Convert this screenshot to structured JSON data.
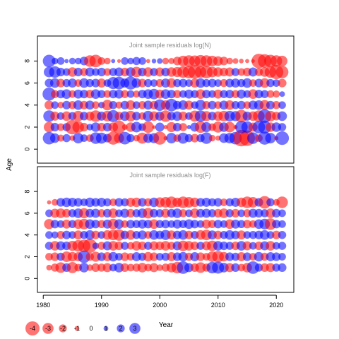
{
  "chart_data": {
    "type": "scatter",
    "subtype": "bubble-residuals",
    "ylabel": "Age",
    "xlabel": "Year",
    "x_range": [
      1981,
      2021
    ],
    "xlim": [
      1979,
      2023
    ],
    "x_ticks": [
      1980,
      1990,
      2000,
      2010,
      2020
    ],
    "ylim": [
      -0.5,
      9.5
    ],
    "y_ticks": [
      0,
      2,
      4,
      6,
      8
    ],
    "colors": {
      "negative": "#ff0000",
      "positive": "#0000ff",
      "opacity": 0.55
    },
    "panels": [
      {
        "title": "Joint sample residuals log(N)",
        "ages": [
          1,
          2,
          3,
          4,
          5,
          6,
          7,
          8
        ],
        "residuals": [
          [
            2.2,
            1.6,
            -1.1,
            1.3,
            -0.8,
            1.8,
            1.2,
            -1.2,
            2.0,
            1.9,
            1.4,
            -2.3,
            -1.7,
            2.2,
            1.3,
            -1.0,
            -1.9,
            1.6,
            1.7,
            -2.3,
            -0.5,
            1.8,
            -1.2,
            1.9,
            1.3,
            -1.4,
            1.3,
            2.0,
            -1.0,
            -0.7,
            1.6,
            1.8,
            2.2,
            -3.0,
            -2.8,
            2.0,
            -1.2,
            2.3,
            1.8,
            -0.5,
            2.4
          ],
          [
            -1.8,
            1.4,
            -1.2,
            1.3,
            -2.6,
            -2.0,
            -1.4,
            1.0,
            1.6,
            -1.4,
            1.4,
            -1.6,
            -2.3,
            -0.8,
            -1.6,
            1.8,
            1.2,
            -2.0,
            -0.4,
            1.5,
            -0.5,
            -1.7,
            1.4,
            -1.3,
            0.5,
            1.5,
            -2.0,
            1.7,
            -1.2,
            -1.9,
            1.6,
            -1.8,
            -0.5,
            2.2,
            2.0,
            -1.5,
            2.2,
            2.3,
            -1.6,
            1.6,
            1.3
          ],
          [
            2.0,
            -1.5,
            1.2,
            -1.6,
            1.3,
            -1.8,
            1.4,
            -1.5,
            -2.0,
            1.5,
            -1.8,
            2.1,
            -1.4,
            1.6,
            -1.8,
            1.4,
            -1.2,
            1.8,
            -1.6,
            1.5,
            -2.0,
            1.4,
            1.6,
            -1.5,
            1.2,
            -1.9,
            2.0,
            -1.7,
            1.4,
            -1.6,
            -1.8,
            1.8,
            1.7,
            -2.2,
            1.5,
            -1.6,
            -2.0,
            2.4,
            -1.8,
            -1.4,
            1.6
          ],
          [
            -1.5,
            1.2,
            -1.0,
            1.4,
            -1.3,
            1.6,
            -1.4,
            1.5,
            -1.2,
            1.0,
            -1.8,
            1.3,
            -1.1,
            1.4,
            -1.6,
            1.2,
            -1.3,
            1.5,
            -1.4,
            2.0,
            -1.6,
            2.2,
            1.4,
            1.6,
            -1.5,
            1.2,
            1.8,
            -1.3,
            1.4,
            -1.2,
            1.5,
            -1.6,
            1.3,
            1.4,
            -1.2,
            1.5,
            1.6,
            -1.7,
            1.4,
            -1.3,
            1.2
          ],
          [
            2.3,
            -1.3,
            1.4,
            1.6,
            -1.2,
            1.5,
            1.4,
            -1.4,
            1.6,
            1.3,
            -1.2,
            1.4,
            1.5,
            -1.3,
            1.2,
            -1.1,
            1.4,
            1.6,
            1.8,
            -1.5,
            1.6,
            1.4,
            -1.3,
            1.2,
            1.5,
            1.3,
            -1.6,
            1.4,
            1.2,
            -1.5,
            1.3,
            1.4,
            -1.3,
            1.5,
            1.2,
            -1.6,
            1.4,
            1.3,
            -1.2,
            -1.1,
            0.8
          ],
          [
            1.4,
            1.6,
            -1.4,
            1.3,
            1.5,
            -1.2,
            1.6,
            1.3,
            1.4,
            -1.5,
            1.2,
            2.1,
            2.2,
            1.5,
            2.3,
            1.6,
            -1.4,
            1.3,
            1.2,
            -1.3,
            1.5,
            -1.6,
            1.3,
            1.4,
            1.2,
            -1.5,
            1.6,
            1.3,
            1.4,
            1.2,
            -1.3,
            1.4,
            1.5,
            1.3,
            1.6,
            -1.2,
            1.4,
            -1.6,
            1.3,
            1.2,
            -1.4
          ],
          [
            1.8,
            2.0,
            1.4,
            1.2,
            -1.6,
            1.4,
            -1.3,
            1.5,
            1.2,
            1.4,
            -1.2,
            1.3,
            1.5,
            -1.4,
            1.6,
            -1.8,
            1.4,
            -1.6,
            1.3,
            -1.5,
            1.4,
            -1.6,
            -1.7,
            -2.0,
            -2.2,
            -2.4,
            -2.0,
            -2.2,
            -1.8,
            -1.6,
            -1.4,
            -1.5,
            1.3,
            -1.2,
            -1.4,
            1.5,
            -1.3,
            -1.6,
            -2.0,
            -2.5,
            -2.2
          ],
          [
            2.2,
            1.0,
            1.2,
            0.5,
            1.0,
            1.0,
            1.4,
            -2.0,
            -2.2,
            -1.2,
            -1.0,
            0.5,
            -0.4,
            1.2,
            1.0,
            1.3,
            1.2,
            -0.5,
            0.6,
            0.8,
            -1.0,
            -0.9,
            -1.4,
            -1.8,
            -2.0,
            -1.9,
            -2.1,
            -2.0,
            -1.8,
            -1.6,
            -1.4,
            -1.0,
            -0.8,
            -0.6,
            -0.5,
            -0.4,
            -2.6,
            -2.4,
            -2.2,
            -2.0,
            -1.8
          ]
        ]
      },
      {
        "title": "Joint sample residuals log(F)",
        "ages": [
          1,
          2,
          3,
          4,
          5,
          6,
          7
        ],
        "residuals": [
          [
            -0.8,
            -1.3,
            -1.8,
            1.4,
            -1.9,
            -1.2,
            1.6,
            -1.0,
            -1.4,
            -1.3,
            -1.5,
            1.2,
            1.6,
            -1.4,
            -1.2,
            -1.3,
            -1.6,
            -1.2,
            -1.5,
            -1.0,
            -1.3,
            -1.6,
            -2.0,
            2.2,
            1.5,
            -1.4,
            -1.8,
            -1.3,
            2.0,
            2.1,
            1.6,
            -1.5,
            1.4,
            -1.2,
            -1.6,
            2.2,
            1.3,
            -1.4,
            -1.5,
            1.3,
            1.4
          ],
          [
            -1.2,
            -1.4,
            1.3,
            -1.8,
            -1.6,
            -1.5,
            2.2,
            -1.3,
            -1.7,
            1.4,
            -1.5,
            1.6,
            1.2,
            -1.4,
            -1.2,
            1.5,
            1.3,
            -1.6,
            -1.4,
            1.2,
            1.3,
            -1.5,
            1.4,
            1.6,
            -1.3,
            1.5,
            -1.4,
            -1.2,
            -1.8,
            -2.0,
            -1.6,
            1.4,
            1.3,
            -1.5,
            1.4,
            -1.2,
            1.6,
            -1.3,
            1.5,
            1.4,
            1.2
          ],
          [
            1.3,
            -1.6,
            1.5,
            1.4,
            -1.7,
            -2.0,
            -2.2,
            -2.5,
            1.0,
            -1.3,
            1.5,
            -1.6,
            -1.4,
            1.3,
            -1.2,
            -1.6,
            -1.4,
            1.3,
            -1.5,
            -1.4,
            -1.6,
            -1.3,
            1.5,
            -1.8,
            -1.6,
            -1.4,
            1.3,
            -1.5,
            -1.8,
            1.6,
            1.4,
            1.3,
            -1.4,
            1.6,
            -1.5,
            1.2,
            -1.4,
            1.5,
            -1.6,
            1.2,
            1.3
          ],
          [
            1.2,
            1.1,
            -1.3,
            1.4,
            1.2,
            -1.5,
            1.3,
            1.6,
            -1.4,
            1.2,
            -1.6,
            -1.8,
            -2.0,
            1.4,
            -1.6,
            1.3,
            1.5,
            -1.2,
            1.6,
            1.4,
            1.7,
            -1.5,
            1.4,
            1.6,
            -1.4,
            1.3,
            -1.6,
            -1.8,
            1.5,
            -1.4,
            1.3,
            1.6,
            1.4,
            -1.5,
            1.2,
            1.3,
            1.4,
            1.6,
            1.2,
            -1.4,
            1.3
          ],
          [
            -1.7,
            1.4,
            1.2,
            -1.5,
            1.3,
            -1.6,
            -1.8,
            1.6,
            1.4,
            -1.3,
            1.5,
            -1.8,
            1.6,
            -1.2,
            1.4,
            1.3,
            1.5,
            1.4,
            -1.6,
            1.3,
            1.4,
            1.2,
            1.5,
            1.3,
            1.6,
            1.4,
            1.2,
            -1.5,
            -1.3,
            1.4,
            1.2,
            -1.6,
            1.5,
            1.3,
            -1.4,
            -1.2,
            1.6,
            1.8,
            -2.0,
            1.4,
            1.2
          ],
          [
            1.2,
            -1.5,
            -1.6,
            -1.4,
            1.3,
            1.6,
            -1.7,
            1.4,
            1.5,
            -1.3,
            1.4,
            -1.6,
            1.2,
            1.5,
            -1.4,
            1.3,
            1.6,
            -1.8,
            1.4,
            1.3,
            -1.5,
            1.4,
            1.6,
            -1.3,
            1.2,
            -1.6,
            1.4,
            1.5,
            1.3,
            -1.4,
            -1.6,
            1.3,
            -1.4,
            1.2,
            -1.3,
            1.5,
            1.4,
            1.3,
            -1.6,
            1.4,
            1.2
          ],
          [
            -0.5,
            -1.0,
            1.4,
            1.6,
            1.5,
            1.4,
            1.2,
            1.6,
            1.4,
            1.5,
            1.3,
            -1.2,
            1.4,
            1.3,
            -1.5,
            -1.6,
            1.4,
            -1.3,
            1.6,
            -1.7,
            -1.8,
            -2.0,
            -1.6,
            -2.0,
            -1.8,
            -1.6,
            1.4,
            1.5,
            1.3,
            1.4,
            -1.2,
            1.3,
            1.5,
            -1.6,
            -2.0,
            -1.8,
            1.4,
            -2.2,
            1.3,
            -1.0,
            -2.0
          ]
        ]
      }
    ],
    "legend": {
      "values": [
        -4,
        -3,
        -2,
        -1,
        0,
        1,
        2,
        3
      ],
      "labels": [
        "-4",
        "-3",
        "-2",
        "-1",
        "0",
        "1",
        "2",
        "3"
      ]
    }
  }
}
